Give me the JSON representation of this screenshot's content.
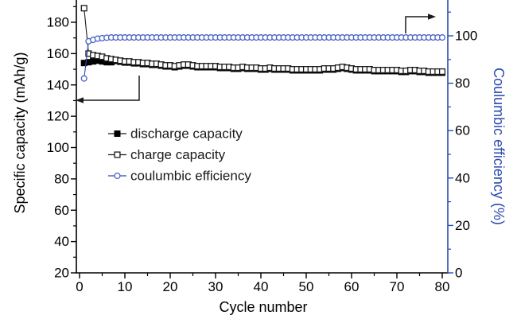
{
  "figure": {
    "background": "#ffffff",
    "axis_color": "#000000",
    "arrow_color": "#1a1a1a"
  },
  "chart_data": {
    "type": "line",
    "title": "",
    "xlabel": "Cycle number",
    "x_axis": {
      "min": 0,
      "max": 81.2,
      "major_ticks": [
        0,
        10,
        20,
        30,
        40,
        50,
        60,
        70,
        80
      ],
      "minor_ticks": [
        5,
        15,
        25,
        35,
        45,
        55,
        65,
        75
      ],
      "color": "#000000"
    },
    "left_axis": {
      "label": "Specific capacity (mAh/g)",
      "min": 20,
      "max": 194,
      "major_ticks": [
        20,
        40,
        60,
        80,
        100,
        120,
        140,
        160,
        180
      ],
      "minor_ticks": [
        30,
        50,
        70,
        90,
        110,
        130,
        150,
        170,
        190
      ],
      "color": "#000000",
      "tick_label_color": "#000000"
    },
    "right_axis": {
      "label": "Coulumbic efficiency (%)",
      "min": 0,
      "max": 115,
      "major_ticks": [
        0,
        20,
        40,
        60,
        80,
        100
      ],
      "minor_ticks": [
        10,
        30,
        50,
        70,
        90,
        110
      ],
      "color": "#2b4ab0",
      "tick_label_color": "#000000"
    },
    "cycles": [
      1,
      2,
      3,
      4,
      5,
      6,
      7,
      8,
      9,
      10,
      11,
      12,
      13,
      14,
      15,
      16,
      17,
      18,
      19,
      20,
      21,
      22,
      23,
      24,
      25,
      26,
      27,
      28,
      29,
      30,
      31,
      32,
      33,
      34,
      35,
      36,
      37,
      38,
      39,
      40,
      41,
      42,
      43,
      44,
      45,
      46,
      47,
      48,
      49,
      50,
      51,
      52,
      53,
      54,
      55,
      56,
      57,
      58,
      59,
      60,
      61,
      62,
      63,
      64,
      65,
      66,
      67,
      68,
      69,
      70,
      71,
      72,
      73,
      74,
      75,
      76,
      77,
      78,
      79,
      80
    ],
    "series": [
      {
        "name": "discharge capacity",
        "axis": "left",
        "marker": "filled-square",
        "line_color": "#000000",
        "marker_color": "#000000",
        "values": [
          154,
          154.5,
          155,
          155.5,
          155,
          154.5,
          154.5,
          155.3,
          154.8,
          154.3,
          154.3,
          153.8,
          153.8,
          153.3,
          153.3,
          152.8,
          152.8,
          152.3,
          151.8,
          151.8,
          151.3,
          151.8,
          152.3,
          152.3,
          151.8,
          151.3,
          151.3,
          151.3,
          151.3,
          151.3,
          150.8,
          150.8,
          150.8,
          150.3,
          150.3,
          150.8,
          150.3,
          150.3,
          150.3,
          149.8,
          149.8,
          150.3,
          149.8,
          149.8,
          149.8,
          149.8,
          149.3,
          149.3,
          149.3,
          149.3,
          149.3,
          149.3,
          149.3,
          149.8,
          149.8,
          149.8,
          150.3,
          150.8,
          150.3,
          149.8,
          149.3,
          149.3,
          149.3,
          149.3,
          148.8,
          148.8,
          148.8,
          148.8,
          148.8,
          148.8,
          148.3,
          148.3,
          148.8,
          148.8,
          148.3,
          148.3,
          147.8,
          147.8,
          147.8,
          147.8
        ]
      },
      {
        "name": "charge capacity",
        "axis": "left",
        "marker": "open-square",
        "line_color": "#1a1a1a",
        "marker_color": "#1a1a1a",
        "values": [
          189,
          160,
          159,
          158.5,
          158,
          157,
          156.5,
          156,
          155.5,
          155,
          155,
          154.5,
          154.5,
          154,
          154,
          153.5,
          153.5,
          153,
          152.5,
          152.5,
          152,
          152.5,
          153,
          153,
          152.5,
          152,
          152,
          152,
          152,
          152,
          151.5,
          151.5,
          151.5,
          151,
          151,
          151.5,
          151,
          151,
          151,
          150.5,
          150.5,
          151,
          150.5,
          150.5,
          150.5,
          150.5,
          150,
          150,
          150,
          150,
          150,
          150,
          150,
          150.5,
          150.5,
          150.5,
          151,
          151.5,
          151,
          150.5,
          150,
          150,
          150,
          150,
          149.5,
          149.5,
          149.5,
          149.5,
          149.5,
          149.5,
          149,
          149,
          149.5,
          149.5,
          149,
          149,
          148.5,
          148.5,
          148.5,
          148.5
        ]
      },
      {
        "name": "coulumbic efficiency",
        "axis": "right",
        "marker": "open-circle",
        "line_color": "#2b4ab0",
        "marker_color": "#4a62c4",
        "values": [
          82,
          97.7,
          98.3,
          98.8,
          99,
          99.2,
          99.3,
          99.3,
          99.3,
          99.3,
          99.3,
          99.3,
          99.3,
          99.3,
          99.3,
          99.3,
          99.3,
          99.3,
          99.3,
          99.3,
          99.3,
          99.3,
          99.3,
          99.3,
          99.3,
          99.3,
          99.3,
          99.3,
          99.3,
          99.3,
          99.3,
          99.3,
          99.3,
          99.3,
          99.3,
          99.3,
          99.3,
          99.3,
          99.3,
          99.3,
          99.3,
          99.3,
          99.3,
          99.3,
          99.3,
          99.3,
          99.3,
          99.3,
          99.3,
          99.3,
          99.3,
          99.3,
          99.3,
          99.3,
          99.3,
          99.3,
          99.3,
          99.3,
          99.3,
          99.3,
          99.3,
          99.3,
          99.3,
          99.3,
          99.3,
          99.3,
          99.3,
          99.3,
          99.3,
          99.3,
          99.3,
          99.3,
          99.3,
          99.3,
          99.3,
          99.3,
          99.3,
          99.3,
          99.3,
          99.3
        ]
      }
    ],
    "legend": {
      "position": "inside-center-left",
      "items": [
        {
          "label": "discharge capacity",
          "marker": "filled-square",
          "marker_color": "#000000",
          "line_color": "#1a1a1a",
          "label_color": "#1a1a1a"
        },
        {
          "label": "charge capacity",
          "marker": "open-square",
          "marker_color": "#1a1a1a",
          "line_color": "#1a1a1a",
          "label_color": "#1a1a1a"
        },
        {
          "label": "coulumbic efficiency",
          "marker": "open-circle",
          "marker_color": "#4a62c4",
          "line_color": "#2b4ab0",
          "label_color": "#1a1a1a"
        }
      ]
    },
    "annotations": [
      {
        "id": "left-axis-arrow",
        "meaning": "capacity curves read left axis",
        "points": [
          [
            175,
            95
          ],
          [
            175,
            126
          ],
          [
            103,
            126
          ]
        ],
        "head": [
          [
            95,
            126
          ],
          [
            105,
            122.2
          ],
          [
            105,
            129.8
          ]
        ]
      },
      {
        "id": "right-axis-arrow",
        "meaning": "efficiency curve reads right axis",
        "points": [
          [
            510,
            42
          ],
          [
            510,
            21
          ],
          [
            540,
            21
          ]
        ],
        "head": [
          [
            548,
            21
          ],
          [
            538,
            17.2
          ],
          [
            538,
            24.8
          ]
        ]
      }
    ]
  }
}
